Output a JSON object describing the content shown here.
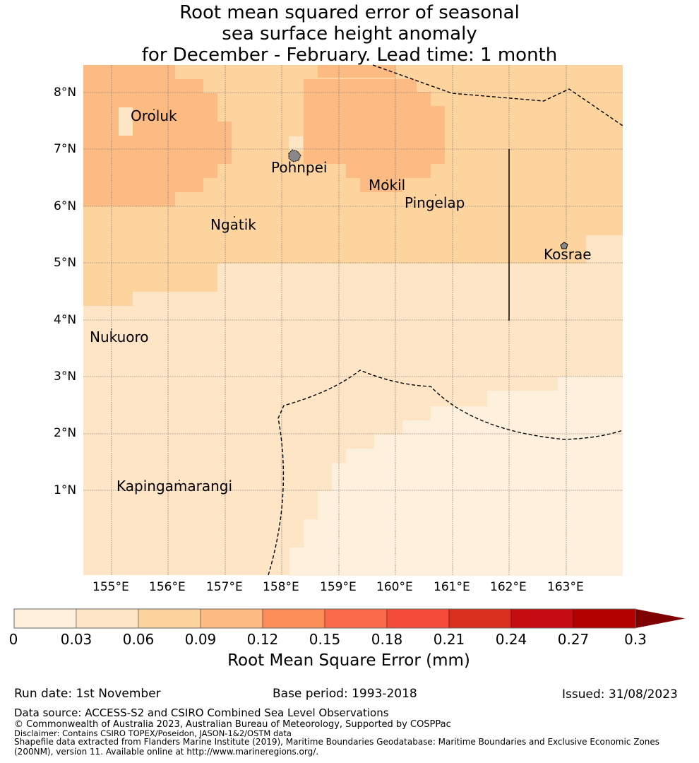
{
  "title": {
    "line1": "Root mean squared error of seasonal",
    "line2": "sea surface height anomaly",
    "line3": "for December - February. Lead time: 1 month"
  },
  "map": {
    "lat_ticks": [
      "8°N",
      "7°N",
      "6°N",
      "5°N",
      "4°N",
      "3°N",
      "2°N",
      "1°N"
    ],
    "lon_ticks": [
      "155°E",
      "156°E",
      "157°E",
      "158°E",
      "159°E",
      "160°E",
      "161°E",
      "162°E",
      "163°E"
    ],
    "places": [
      {
        "name": "Oroluk"
      },
      {
        "name": "Pohnpei"
      },
      {
        "name": "Mokil"
      },
      {
        "name": "Pingelap"
      },
      {
        "name": "Ngatik"
      },
      {
        "name": "Kosrae"
      },
      {
        "name": "Nukuoro"
      },
      {
        "name": "Kapingamarangi"
      }
    ]
  },
  "colorbar": {
    "label": "Root Mean Square Error (mm)",
    "ticks": [
      "0",
      "0.03",
      "0.06",
      "0.09",
      "0.12",
      "0.15",
      "0.18",
      "0.21",
      "0.24",
      "0.27",
      "0.3"
    ],
    "colors": [
      "#fef0dc",
      "#fee5c6",
      "#fdd49e",
      "#fdbb84",
      "#fc8d59",
      "#fb6a4a",
      "#f54b3b",
      "#d7301f",
      "#c40c12",
      "#b30000",
      "#7f0000"
    ]
  },
  "footer": {
    "run_date": "Run date: 1st November",
    "base_period": "Base period: 1993-2018",
    "issued": "Issued: 31/08/2023",
    "data_source": "Data source: ACCESS-S2 and CSIRO Combined Sea Level Observations",
    "copyright": "© Commonwealth of Australia 2023, Australian Bureau of Meteorology, Supported by COSPPac",
    "disclaimer": "Disclaimer: Contains CSIRO TOPEX/Poseidon, JASON-1&2/OSTM data",
    "shapefile_1": "Shapefile data extracted from Flanders Marine Institute (2019), Maritime Boundaries Geodatabase: Maritime Boundaries and Exclusive Economic Zones",
    "shapefile_2": "(200NM), version 11. Available online at http://www.marineregions.org/."
  }
}
